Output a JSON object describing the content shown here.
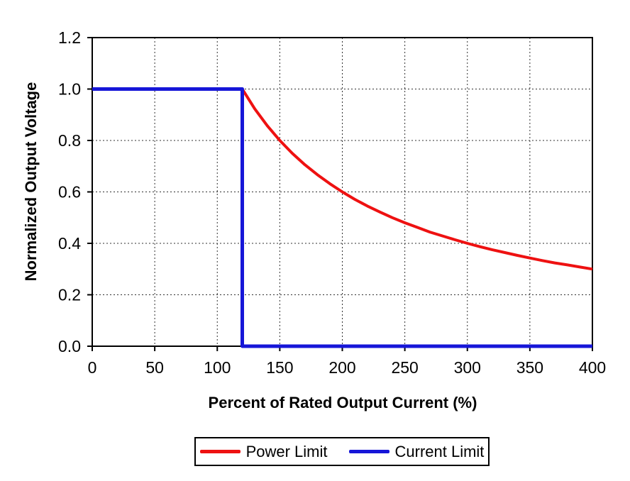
{
  "chart_data": {
    "type": "line",
    "title": "",
    "xlabel": "Percent of Rated Output Current (%)",
    "ylabel": "Normalized Output Voltage",
    "xlim": [
      0,
      400
    ],
    "ylim": [
      0,
      1.2
    ],
    "xticks": [
      0,
      50,
      100,
      150,
      200,
      250,
      300,
      350,
      400
    ],
    "ytick_values": [
      0,
      0.2,
      0.4,
      0.6,
      0.8,
      1.0,
      1.2
    ],
    "ytick_labels": [
      "0.0",
      "0.2",
      "0.4",
      "0.6",
      "0.8",
      "1.0",
      "1.2"
    ],
    "grid": true,
    "grid_style": "dashed",
    "legend_position": "bottom",
    "frame_color": "#000000",
    "series": [
      {
        "name": "Power Limit",
        "color": "#ee1111",
        "line_width": 4,
        "points": [
          [
            120,
            1.0
          ],
          [
            130,
            0.923
          ],
          [
            140,
            0.857
          ],
          [
            150,
            0.8
          ],
          [
            160,
            0.75
          ],
          [
            170,
            0.706
          ],
          [
            180,
            0.667
          ],
          [
            190,
            0.632
          ],
          [
            200,
            0.6
          ],
          [
            210,
            0.571
          ],
          [
            220,
            0.545
          ],
          [
            230,
            0.522
          ],
          [
            240,
            0.5
          ],
          [
            250,
            0.48
          ],
          [
            260,
            0.462
          ],
          [
            270,
            0.444
          ],
          [
            280,
            0.429
          ],
          [
            290,
            0.414
          ],
          [
            300,
            0.4
          ],
          [
            310,
            0.387
          ],
          [
            320,
            0.375
          ],
          [
            330,
            0.364
          ],
          [
            340,
            0.353
          ],
          [
            350,
            0.343
          ],
          [
            360,
            0.333
          ],
          [
            370,
            0.324
          ],
          [
            380,
            0.316
          ],
          [
            390,
            0.308
          ],
          [
            400,
            0.3
          ]
        ]
      },
      {
        "name": "Current Limit",
        "color": "#1616d8",
        "line_width": 5,
        "points": [
          [
            0,
            1.0
          ],
          [
            120,
            1.0
          ],
          [
            120,
            0.0
          ],
          [
            400,
            0.0
          ]
        ]
      }
    ]
  }
}
